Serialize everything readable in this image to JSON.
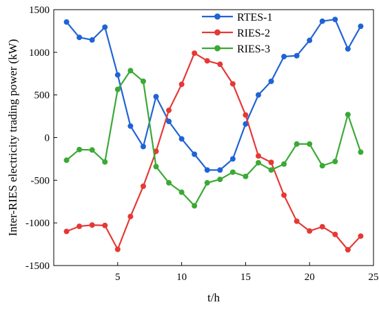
{
  "chart_data": {
    "type": "line",
    "xlabel": "t/h",
    "ylabel": "Inter-RIES electricity trading power (kW)",
    "xlim": [
      0,
      25
    ],
    "ylim": [
      -1500,
      1500
    ],
    "xticks": [
      5,
      10,
      15,
      20,
      25
    ],
    "yticks": [
      -1500,
      -1000,
      -500,
      0,
      500,
      1000,
      1500
    ],
    "grid": false,
    "legend_position": "top-right",
    "x": [
      1,
      2,
      3,
      4,
      5,
      6,
      7,
      8,
      9,
      10,
      11,
      12,
      13,
      14,
      15,
      16,
      17,
      18,
      19,
      20,
      21,
      22,
      23,
      24
    ],
    "series": [
      {
        "name": "RTES-1",
        "color": "#1f63d6",
        "values": [
          1355,
          1175,
          1145,
          1295,
          735,
          135,
          -105,
          480,
          190,
          -15,
          -195,
          -380,
          -380,
          -250,
          160,
          500,
          660,
          950,
          960,
          1140,
          1365,
          1385,
          1040,
          1305
        ]
      },
      {
        "name": "RIES-2",
        "color": "#e53935",
        "values": [
          -1100,
          -1040,
          -1025,
          -1030,
          -1310,
          -925,
          -570,
          -160,
          320,
          625,
          990,
          900,
          860,
          630,
          265,
          -215,
          -290,
          -675,
          -980,
          -1095,
          -1045,
          -1135,
          -1315,
          -1155
        ]
      },
      {
        "name": "RIES-3",
        "color": "#3aa935",
        "values": [
          -265,
          -140,
          -145,
          -285,
          565,
          785,
          660,
          -340,
          -530,
          -640,
          -800,
          -530,
          -490,
          -405,
          -455,
          -295,
          -380,
          -310,
          -75,
          -75,
          -330,
          -280,
          270,
          -170
        ]
      }
    ]
  }
}
